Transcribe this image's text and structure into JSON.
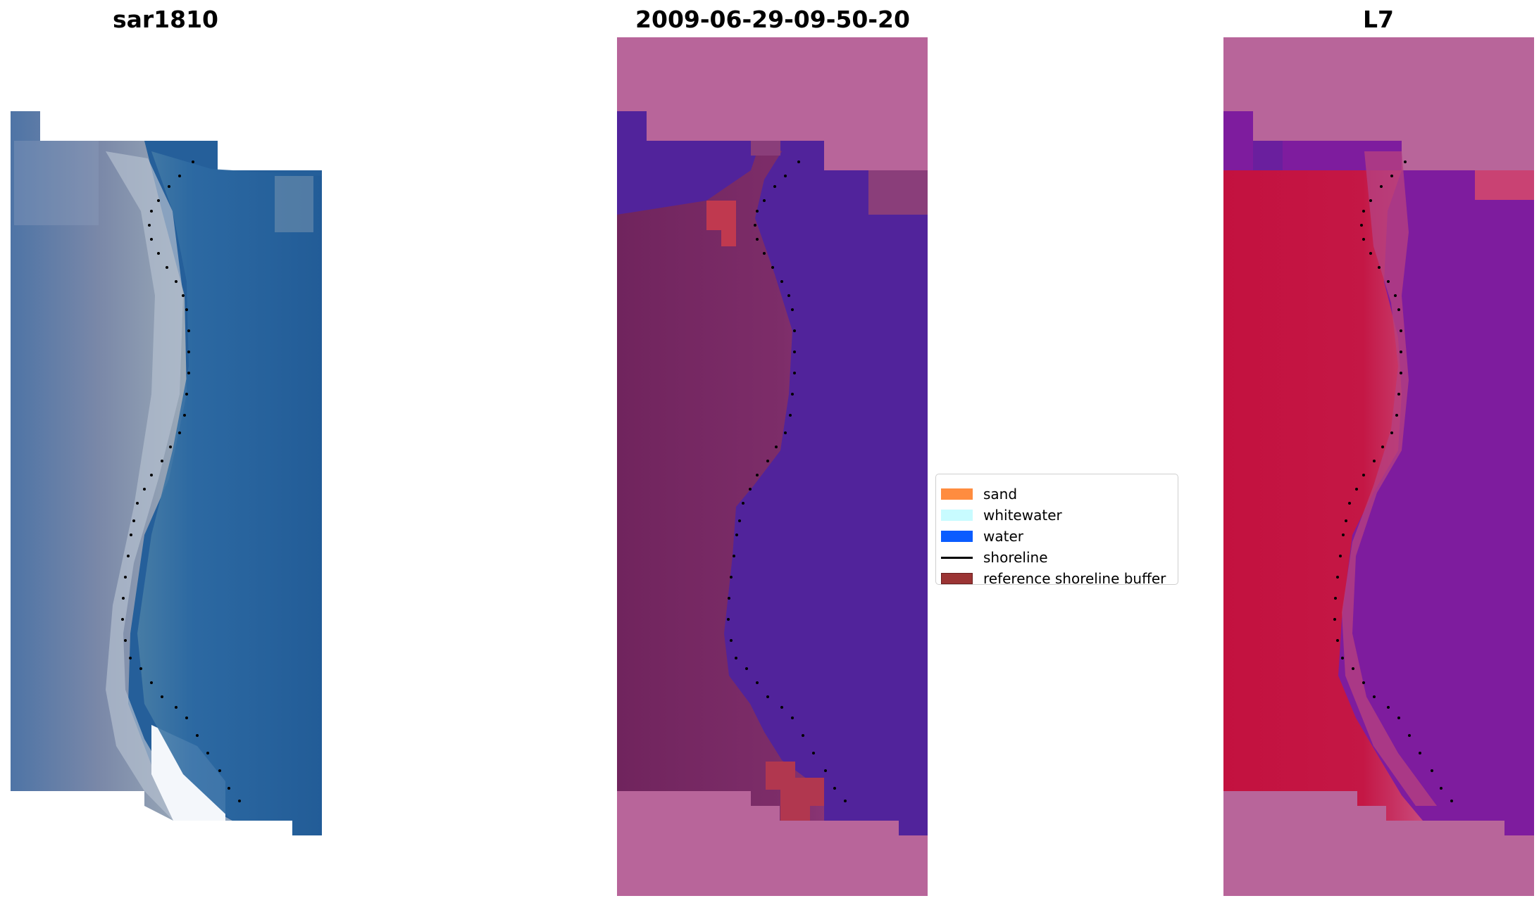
{
  "panels": [
    {
      "title": "sar1810",
      "description": "RGB satellite image"
    },
    {
      "title": "2009-06-29-09-50-20",
      "description": "classified image with shoreline buffer"
    },
    {
      "title": "L7",
      "description": "water index image"
    }
  ],
  "legend": {
    "items": [
      {
        "label": "sand",
        "color": "#ff8c3f"
      },
      {
        "label": "whitewater",
        "color": "#c8fbff"
      },
      {
        "label": "water",
        "color": "#0a5cff"
      },
      {
        "label": "shoreline",
        "color": "#000000"
      },
      {
        "label": "reference shoreline buffer",
        "color": "#9b3434"
      }
    ]
  },
  "colors": {
    "nodata_overlay": "#b8659a",
    "classified_water": "#51239b",
    "classified_land": "#7b2a66",
    "index_land": "#c0123e",
    "index_water": "#7e1c9e",
    "rgb_water": "#255f9a",
    "rgb_land": "#7387a5"
  }
}
